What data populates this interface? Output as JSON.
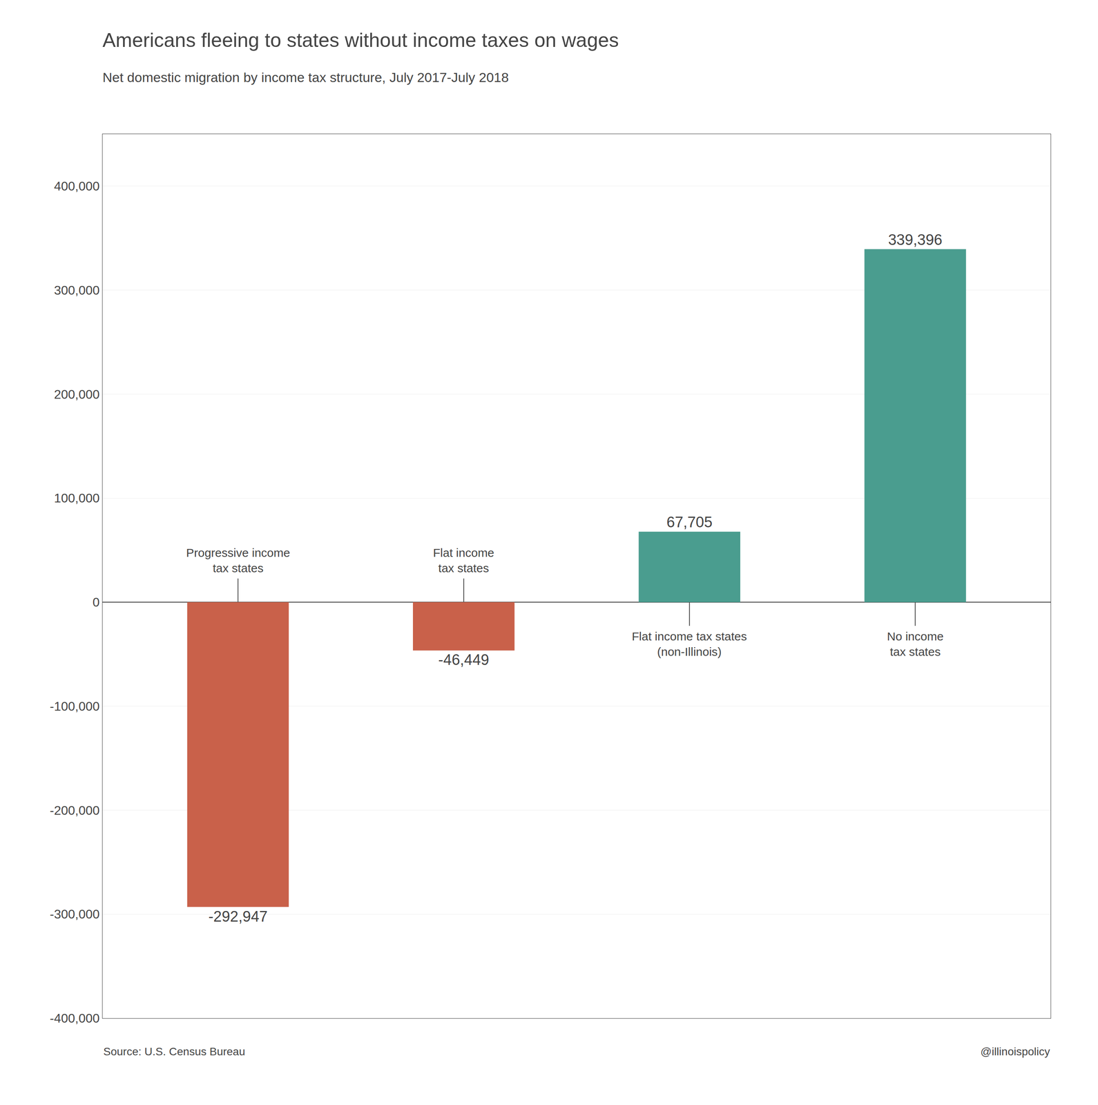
{
  "chart_data": {
    "type": "bar",
    "title": "Americans fleeing to states without income taxes on wages",
    "subtitle": "Net domestic migration by income tax structure, July 2017-July 2018",
    "categories": [
      "Progressive income\ntax states",
      "Flat income\ntax states",
      "Flat income tax states\n(non-Illinois)",
      "No income\ntax states"
    ],
    "values": [
      -292947,
      -46449,
      67705,
      339396
    ],
    "value_labels": [
      "-292,947",
      "-46,449",
      "67,705",
      "339,396"
    ],
    "colors": [
      "#c9614a",
      "#c9614a",
      "#4a9d8f",
      "#4a9d8f"
    ],
    "ylim": [
      -400000,
      450000
    ],
    "yticks": [
      {
        "value": -400000,
        "label": "-400,000"
      },
      {
        "value": -300000,
        "label": "-300,000"
      },
      {
        "value": -200000,
        "label": "-200,000"
      },
      {
        "value": -100000,
        "label": "-100,000"
      },
      0,
      {
        "value": 100000,
        "label": "100,000"
      },
      {
        "value": 200000,
        "label": "200,000"
      },
      {
        "value": 300000,
        "label": "300,000"
      },
      {
        "value": 400000,
        "label": "400,000"
      }
    ],
    "grid": true,
    "data_labels": true,
    "tick_labels": "y",
    "annotations": [
      "Source: U.S. Census Bureau",
      "@illinoispolicy"
    ]
  }
}
